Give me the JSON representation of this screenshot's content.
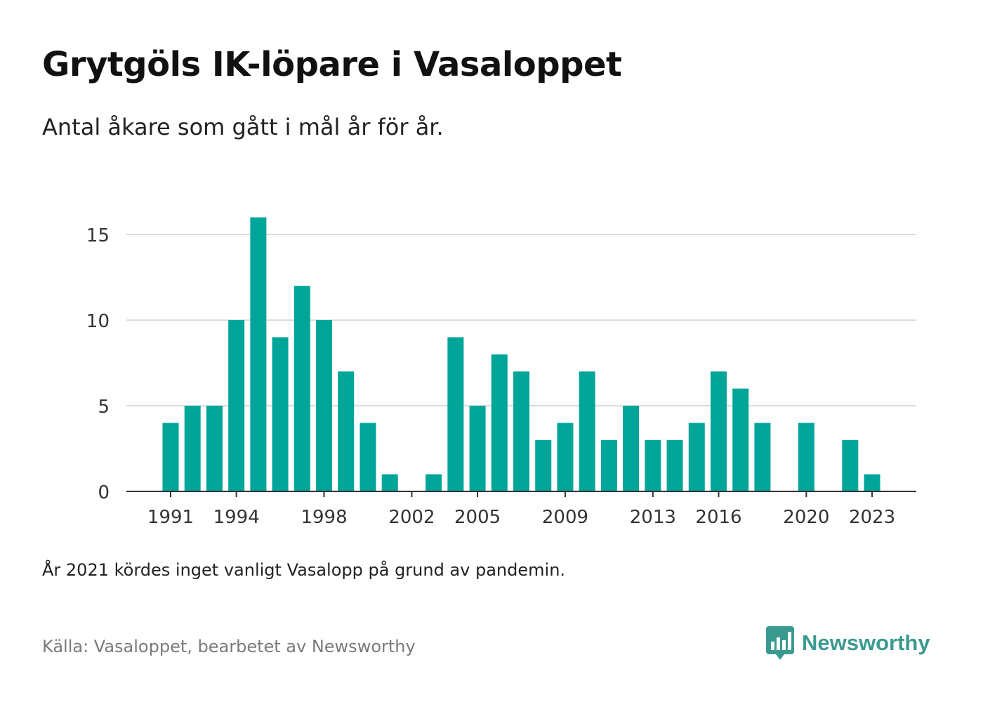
{
  "title": "Grytgöls IK-löpare i Vasaloppet",
  "subtitle": "Antal åkare som gått i mål år för år.",
  "note": "År 2021 kördes inget vanligt Vasalopp på grund av pandemin.",
  "source": "Källa: Vasaloppet, bearbetet av Newsworthy",
  "brand": {
    "name": "Newsworthy",
    "icon": "newsworthy-logo-icon",
    "color": "#3a9a90"
  },
  "chart_data": {
    "type": "bar",
    "title": "Grytgöls IK-löpare i Vasaloppet",
    "subtitle": "Antal åkare som gått i mål år för år.",
    "xlabel": "",
    "ylabel": "",
    "ylim": [
      0,
      17
    ],
    "y_ticks": [
      0,
      5,
      10,
      15
    ],
    "x_tick_labels": [
      "1991",
      "1994",
      "1998",
      "2002",
      "2005",
      "2009",
      "2013",
      "2016",
      "2020",
      "2023"
    ],
    "grid": "horizontal",
    "bar_color": "#00a599",
    "categories": [
      1991,
      1992,
      1993,
      1994,
      1995,
      1996,
      1997,
      1998,
      1999,
      2000,
      2001,
      2002,
      2003,
      2004,
      2005,
      2006,
      2007,
      2008,
      2009,
      2010,
      2011,
      2012,
      2013,
      2014,
      2015,
      2016,
      2017,
      2018,
      2019,
      2020,
      2021,
      2022,
      2023
    ],
    "values": [
      4,
      5,
      5,
      10,
      16,
      9,
      12,
      10,
      7,
      4,
      1,
      0,
      1,
      9,
      5,
      8,
      7,
      3,
      4,
      7,
      3,
      5,
      3,
      3,
      4,
      7,
      6,
      4,
      0,
      4,
      0,
      3,
      1
    ]
  }
}
